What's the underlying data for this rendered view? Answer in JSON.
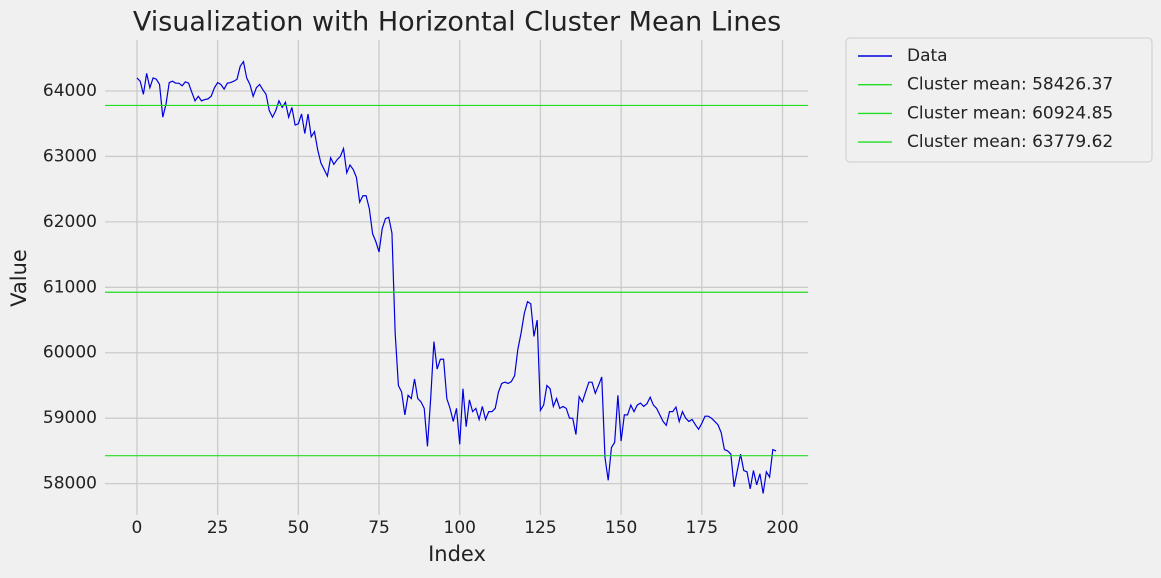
{
  "chart_data": {
    "type": "line",
    "title": "Visualization with Horizontal Cluster Mean Lines",
    "x_label": "Index",
    "y_label": "Value",
    "xlim": [
      -9.9,
      207.9
    ],
    "xticks": [
      0,
      25,
      50,
      75,
      100,
      125,
      150,
      175,
      200
    ],
    "ylim": [
      57520,
      64780
    ],
    "yticks": [
      58000,
      59000,
      60000,
      61000,
      62000,
      63000,
      64000
    ],
    "grid": true,
    "legend": "outside upper right",
    "series": [
      {
        "name": "Data",
        "color": "#0000dd",
        "values": [
          64200,
          64150,
          63950,
          64270,
          64050,
          64200,
          64180,
          64100,
          63600,
          63800,
          64130,
          64150,
          64120,
          64120,
          64080,
          64140,
          64120,
          63980,
          63850,
          63920,
          63850,
          63870,
          63880,
          63920,
          64050,
          64130,
          64100,
          64030,
          64120,
          64130,
          64150,
          64180,
          64380,
          64450,
          64200,
          64100,
          63920,
          64050,
          64100,
          64020,
          63950,
          63700,
          63600,
          63700,
          63850,
          63750,
          63830,
          63600,
          63750,
          63480,
          63500,
          63650,
          63350,
          63650,
          63300,
          63380,
          63100,
          62900,
          62800,
          62700,
          62980,
          62880,
          62950,
          63000,
          63120,
          62750,
          62870,
          62800,
          62680,
          62300,
          62400,
          62400,
          62200,
          61820,
          61700,
          61540,
          61900,
          62050,
          62070,
          61830,
          60300,
          59500,
          59400,
          59050,
          59350,
          59300,
          59600,
          59300,
          59250,
          59150,
          58570,
          59300,
          60170,
          59750,
          59900,
          59900,
          59300,
          59150,
          58950,
          59150,
          58600,
          59450,
          58870,
          59280,
          59100,
          59150,
          58980,
          59180,
          58980,
          59100,
          59100,
          59150,
          59400,
          59530,
          59550,
          59530,
          59560,
          59650,
          60050,
          60300,
          60600,
          60780,
          60750,
          60250,
          60500,
          59120,
          59200,
          59500,
          59450,
          59180,
          59300,
          59150,
          59180,
          59150,
          59000,
          59000,
          58750,
          59330,
          59250,
          59400,
          59550,
          59550,
          59380,
          59500,
          59630,
          58400,
          58050,
          58550,
          58630,
          59350,
          58650,
          59050,
          59050,
          59200,
          59100,
          59200,
          59230,
          59180,
          59220,
          59320,
          59200,
          59150,
          59050,
          58950,
          58890,
          59100,
          59100,
          59170,
          58950,
          59100,
          59000,
          58950,
          58980,
          58900,
          58830,
          58920,
          59030,
          59030,
          59000,
          58950,
          58900,
          58780,
          58520,
          58500,
          58450,
          57950,
          58200,
          58450,
          58200,
          58180,
          57920,
          58200,
          57980,
          58150,
          57850,
          58180,
          58100,
          58520,
          58500
        ]
      }
    ],
    "hlines": [
      {
        "name": "Cluster mean: 58426.37",
        "value": 58426.37,
        "color": "#22dd22"
      },
      {
        "name": "Cluster mean: 60924.85",
        "value": 60924.85,
        "color": "#22dd22"
      },
      {
        "name": "Cluster mean: 63779.62",
        "value": 63779.62,
        "color": "#22dd22"
      }
    ]
  }
}
